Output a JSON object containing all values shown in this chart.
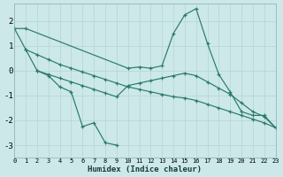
{
  "xlabel": "Humidex (Indice chaleur)",
  "bg_color": "#cce8e8",
  "line_color": "#2a7a6a",
  "grid_color": "#b5d5d5",
  "xlim": [
    0,
    23
  ],
  "ylim": [
    -3.5,
    2.7
  ],
  "xticks": [
    0,
    1,
    2,
    3,
    4,
    5,
    6,
    7,
    8,
    9,
    10,
    11,
    12,
    13,
    14,
    15,
    16,
    17,
    18,
    19,
    20,
    21,
    22,
    23
  ],
  "yticks": [
    -3,
    -2,
    -1,
    0,
    1,
    2
  ],
  "series": [
    {
      "x": [
        0,
        1,
        10,
        11,
        12,
        13,
        14,
        15,
        16,
        17,
        18,
        19,
        20,
        21,
        22,
        23
      ],
      "y": [
        1.7,
        1.7,
        0.1,
        0.15,
        0.1,
        0.2,
        1.5,
        2.25,
        2.5,
        1.1,
        -0.15,
        -0.85,
        -1.65,
        -1.8,
        -1.8,
        -2.3
      ]
    },
    {
      "x": [
        0,
        1,
        2,
        3,
        4,
        5,
        6,
        7,
        8,
        9,
        10,
        11,
        12,
        13,
        14,
        15,
        16,
        17,
        18,
        19,
        20,
        21,
        22,
        23
      ],
      "y": [
        1.7,
        0.85,
        0.65,
        0.45,
        0.25,
        0.1,
        -0.05,
        -0.2,
        -0.35,
        -0.5,
        -0.65,
        -0.75,
        -0.85,
        -0.95,
        -1.05,
        -1.1,
        -1.2,
        -1.35,
        -1.5,
        -1.65,
        -1.8,
        -1.95,
        -2.1,
        -2.3
      ]
    },
    {
      "x": [
        1,
        2,
        3,
        4,
        5,
        6,
        7,
        8,
        9,
        10,
        11,
        12,
        13,
        14,
        15,
        16,
        17,
        18,
        19,
        20,
        21,
        22,
        23
      ],
      "y": [
        0.85,
        0.0,
        -0.15,
        -0.3,
        -0.45,
        -0.6,
        -0.75,
        -0.9,
        -1.05,
        -0.6,
        -0.5,
        -0.4,
        -0.3,
        -0.2,
        -0.1,
        -0.2,
        -0.45,
        -0.7,
        -0.95,
        -1.3,
        -1.65,
        -1.85,
        -2.3
      ]
    },
    {
      "x": [
        2,
        3,
        4,
        5,
        6,
        7,
        8,
        9
      ],
      "y": [
        0.0,
        -0.2,
        -0.65,
        -0.85,
        -2.25,
        -2.1,
        -2.9,
        -3.0
      ]
    }
  ]
}
